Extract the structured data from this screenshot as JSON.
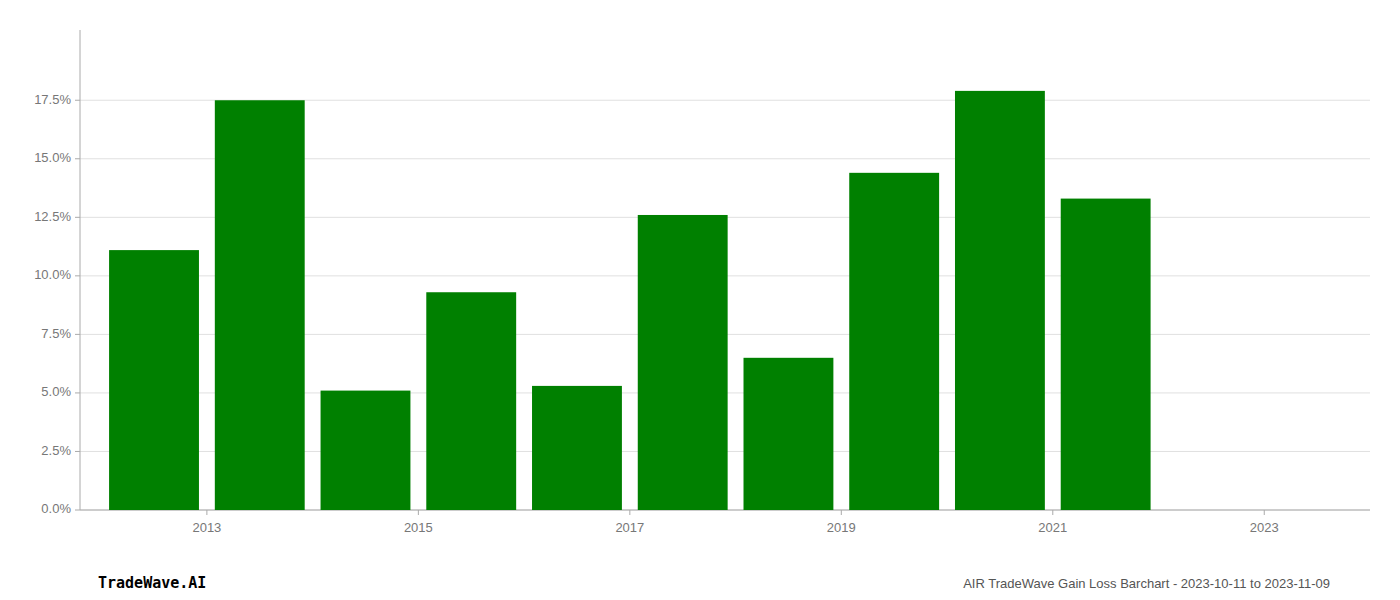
{
  "chart_data": {
    "type": "bar",
    "x": [
      2013,
      2014,
      2015,
      2016,
      2017,
      2018,
      2019,
      2020,
      2021,
      2022
    ],
    "values": [
      0.111,
      0.175,
      0.051,
      0.093,
      0.053,
      0.126,
      0.065,
      0.144,
      0.179,
      0.133
    ],
    "color": "#008000",
    "xlim": [
      2012.3,
      2024.5
    ],
    "xticks": [
      {
        "value": 2013.5,
        "label": "2013"
      },
      {
        "value": 2015.5,
        "label": "2015"
      },
      {
        "value": 2017.5,
        "label": "2017"
      },
      {
        "value": 2019.5,
        "label": "2019"
      },
      {
        "value": 2021.5,
        "label": "2021"
      },
      {
        "value": 2023.5,
        "label": "2023"
      }
    ],
    "ylim": [
      0.0,
      0.205
    ],
    "yticks": [
      {
        "value": 0.0,
        "label": "0.0%"
      },
      {
        "value": 0.025,
        "label": "2.5%"
      },
      {
        "value": 0.05,
        "label": "5.0%"
      },
      {
        "value": 0.075,
        "label": "7.5%"
      },
      {
        "value": 0.1,
        "label": "10.0%"
      },
      {
        "value": 0.125,
        "label": "12.5%"
      },
      {
        "value": 0.15,
        "label": "15.0%"
      },
      {
        "value": 0.175,
        "label": "17.5%"
      }
    ],
    "grid": true,
    "annotations": [
      "TradeWave.AI",
      "AIR TradeWave Gain Loss Barchart - 2023-10-11 to 2023-11-09"
    ]
  }
}
